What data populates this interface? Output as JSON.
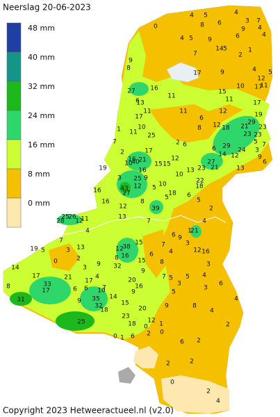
{
  "title": "Neerslag 20-06-2023",
  "legend": [
    {
      "label": "48 mm",
      "color": "#1f3fa3"
    },
    {
      "label": "40 mm",
      "color": "#17948a"
    },
    {
      "label": "32 mm",
      "color": "#1cb81c"
    },
    {
      "label": "24 mm",
      "color": "#2fd66a"
    },
    {
      "label": "16 mm",
      "color": "#ccff33"
    },
    {
      "label": "8 mm",
      "color": "#f5c000"
    },
    {
      "label": "0 mm",
      "color": "#ffe8b0"
    }
  ],
  "stations": [
    0,
    4,
    5,
    4,
    6,
    8,
    3,
    7,
    4,
    4,
    5,
    9,
    9,
    4,
    5,
    6,
    14,
    1,
    2,
    7,
    9,
    8,
    4,
    17,
    9,
    5,
    12,
    11,
    17,
    10,
    15,
    27,
    16,
    6,
    13,
    11,
    11,
    11,
    11,
    17,
    19,
    12,
    6,
    21,
    29,
    23,
    17,
    10,
    11,
    1,
    8,
    12,
    18,
    25,
    23,
    23,
    5,
    7,
    2,
    6,
    6,
    29,
    24,
    3,
    12,
    9,
    6,
    7,
    2,
    16,
    10,
    40,
    21,
    17,
    16,
    15,
    15,
    12,
    27,
    23,
    21,
    13,
    13,
    14,
    19,
    3,
    25,
    9,
    22,
    18,
    43,
    27,
    12,
    5,
    10,
    10,
    16,
    12,
    8,
    39,
    5,
    18,
    6,
    5,
    16,
    4,
    13,
    11,
    12,
    26,
    25,
    28,
    4,
    7,
    2,
    1,
    3,
    21,
    6,
    9,
    12,
    16,
    38,
    15,
    12,
    8,
    32,
    16,
    15,
    9,
    7,
    4,
    6,
    8,
    19,
    5,
    7,
    13,
    3,
    0,
    9,
    3,
    2,
    17,
    21,
    17,
    20,
    4,
    14,
    8,
    33,
    17,
    6,
    10,
    35,
    32,
    9,
    16,
    7,
    5,
    3,
    5,
    14,
    20,
    15,
    18,
    31,
    25,
    23,
    12,
    18,
    9,
    6,
    7,
    0,
    5,
    9,
    3,
    4,
    6,
    3,
    1,
    2,
    0,
    6,
    1,
    0,
    4,
    2,
    2,
    2,
    2,
    2,
    4,
    0,
    6,
    8,
    4
  ],
  "copyright": "Copyright 2023 Hetweeractueel.nl (v2.0)"
}
